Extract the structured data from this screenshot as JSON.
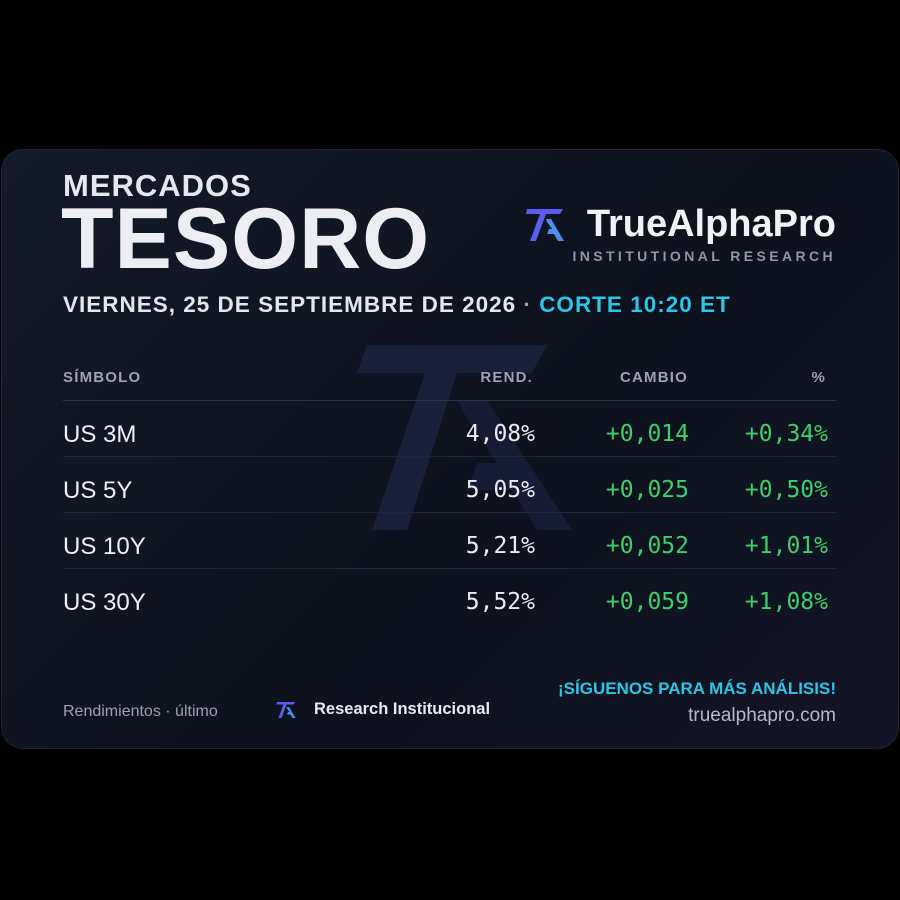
{
  "header": {
    "kicker": "MERCADOS",
    "title": "TESORO",
    "date": "VIERNES, 25 DE SEPTIEMBRE DE 2026",
    "separator": "·",
    "cutoff": "CORTE 10:20 ET"
  },
  "brand": {
    "name": "TrueAlphaPro",
    "subtitle": "INSTITUTIONAL RESEARCH",
    "logo_icon": "ta-logo-icon",
    "accent": "#5b5cf0"
  },
  "table": {
    "columns": [
      "SÍMBOLO",
      "REND.",
      "CAMBIO",
      "%"
    ],
    "rows": [
      {
        "symbol": "US 3M",
        "yield": "4,08%",
        "change": "+0,014",
        "pct": "+0,34%"
      },
      {
        "symbol": "US 5Y",
        "yield": "5,05%",
        "change": "+0,025",
        "pct": "+0,50%"
      },
      {
        "symbol": "US 10Y",
        "yield": "5,21%",
        "change": "+0,052",
        "pct": "+1,01%"
      },
      {
        "symbol": "US 30Y",
        "yield": "5,52%",
        "change": "+0,059",
        "pct": "+1,08%"
      }
    ],
    "positive_color": "#3fcf6a"
  },
  "footer": {
    "note": "Rendimientos · último",
    "research_label": "Research Institucional",
    "cta": "¡SÍGUENOS PARA MÁS ANÁLISIS!",
    "url": "truealphapro.com"
  },
  "colors": {
    "background": "#000000",
    "card": "#111724",
    "highlight": "#2ec6e6"
  }
}
